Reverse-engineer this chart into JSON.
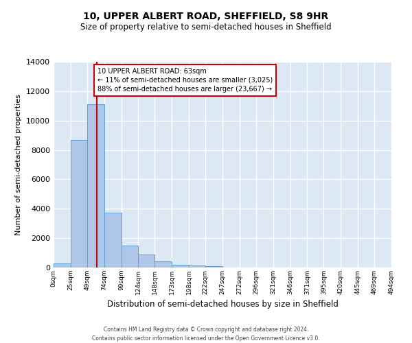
{
  "title_line1": "10, UPPER ALBERT ROAD, SHEFFIELD, S8 9HR",
  "title_line2": "Size of property relative to semi-detached houses in Sheffield",
  "xlabel": "Distribution of semi-detached houses by size in Sheffield",
  "ylabel": "Number of semi-detached properties",
  "property_size": 63,
  "property_label": "10 UPPER ALBERT ROAD: 63sqm",
  "smaller_pct": 11,
  "smaller_count": 3025,
  "larger_pct": 88,
  "larger_count": 23667,
  "bin_edges": [
    0,
    25,
    49,
    74,
    99,
    124,
    148,
    173,
    198,
    222,
    247,
    272,
    296,
    321,
    346,
    371,
    395,
    420,
    445,
    469,
    494
  ],
  "bin_labels": [
    "0sqm",
    "25sqm",
    "49sqm",
    "74sqm",
    "99sqm",
    "124sqm",
    "148sqm",
    "173sqm",
    "198sqm",
    "222sqm",
    "247sqm",
    "272sqm",
    "296sqm",
    "321sqm",
    "346sqm",
    "371sqm",
    "395sqm",
    "420sqm",
    "445sqm",
    "469sqm",
    "494sqm"
  ],
  "bar_heights": [
    300,
    8700,
    11100,
    3750,
    1500,
    900,
    400,
    200,
    130,
    110,
    0,
    0,
    0,
    0,
    0,
    0,
    0,
    0,
    0,
    0
  ],
  "bar_color": "#aec6e8",
  "bar_edge_color": "#5a9fd4",
  "vline_color": "#cc0000",
  "vline_x": 63,
  "annotation_box_color": "#cc0000",
  "background_color": "#dde8f5",
  "grid_color": "#ffffff",
  "footer_line1": "Contains HM Land Registry data © Crown copyright and database right 2024.",
  "footer_line2": "Contains public sector information licensed under the Open Government Licence v3.0.",
  "ylim": [
    0,
    14000
  ],
  "yticks": [
    0,
    2000,
    4000,
    6000,
    8000,
    10000,
    12000,
    14000
  ]
}
